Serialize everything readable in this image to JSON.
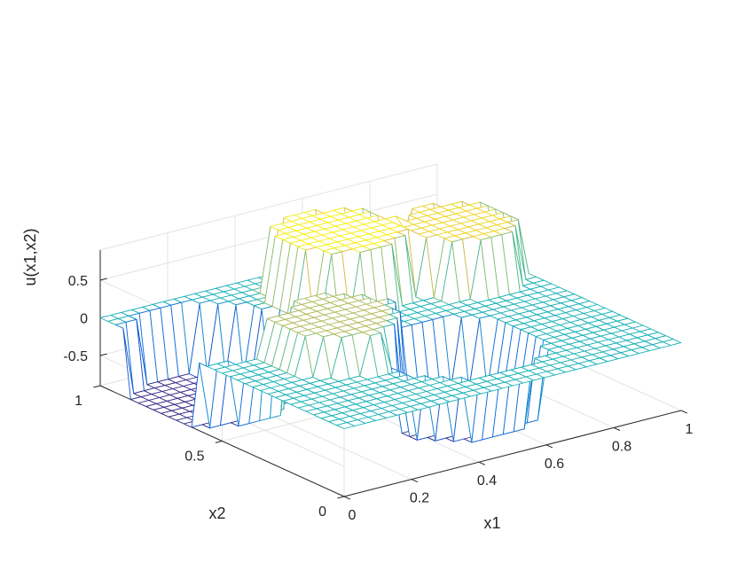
{
  "chart_data": {
    "type": "surface-mesh",
    "title": "",
    "xlabel": "x1",
    "ylabel": "x2",
    "zlabel": "u(x1,x2)",
    "xlim": [
      0,
      1
    ],
    "ylim": [
      0,
      1
    ],
    "zlim": [
      -0.9,
      0.9
    ],
    "xticks": [
      "0",
      "0.2",
      "0.4",
      "0.6",
      "0.8",
      "1"
    ],
    "yticks": [
      "0",
      "0.5",
      "1"
    ],
    "zticks": [
      "-0.5",
      "0",
      "0.5"
    ],
    "grid": true,
    "colormap": "parula",
    "baseline_value": 0,
    "regions": [
      {
        "shape": "circle",
        "cx": 0.15,
        "cy": 0.75,
        "r": 0.2,
        "value": -0.9
      },
      {
        "shape": "circle",
        "cx": 0.3,
        "cy": 0.45,
        "r": 0.17,
        "value": 0.5
      },
      {
        "shape": "circle",
        "cx": 0.55,
        "cy": 0.78,
        "r": 0.17,
        "value": 0.85
      },
      {
        "shape": "circle",
        "cx": 0.55,
        "cy": 0.3,
        "r": 0.2,
        "value": -0.9
      },
      {
        "shape": "circle",
        "cx": 0.85,
        "cy": 0.7,
        "r": 0.15,
        "value": 0.75
      }
    ],
    "grid_resolution": 32
  }
}
